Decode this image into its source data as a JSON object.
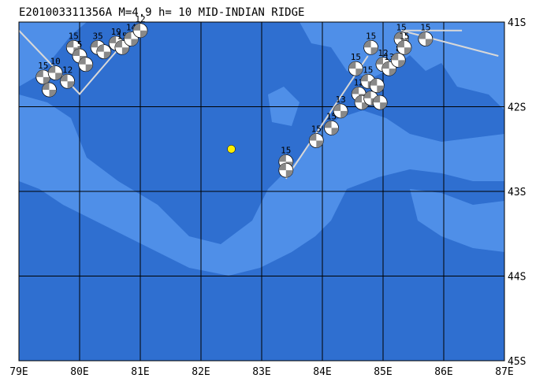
{
  "title": "E201003311356A M=4.9 h= 10 MID-INDIAN RIDGE",
  "map": {
    "lon_range": [
      79,
      87
    ],
    "lat_range": [
      -45,
      -41
    ],
    "lon_ticks": [
      "79E",
      "80E",
      "81E",
      "82E",
      "83E",
      "84E",
      "85E",
      "86E",
      "87E"
    ],
    "lat_ticks": [
      "41S",
      "42S",
      "43S",
      "44S",
      "45S"
    ],
    "colors": {
      "ocean_deep": "#2f6fd0",
      "ocean_shallow": "#4f8fe8",
      "grid": "#000000",
      "ridge": "#d8d8d8",
      "epicenter": "#ffee00"
    }
  },
  "epicenter": {
    "lon": 82.5,
    "lat": -42.5
  },
  "ridge_segments": [
    [
      [
        79.0,
        -41.1
      ],
      [
        80.0,
        -41.85
      ],
      [
        80.9,
        -41.1
      ]
    ],
    [
      [
        83.4,
        -42.85
      ],
      [
        84.75,
        -41.4
      ]
    ],
    [
      [
        85.35,
        -41.1
      ],
      [
        86.3,
        -41.1
      ]
    ],
    [
      [
        85.3,
        -41.1
      ],
      [
        86.9,
        -41.4
      ]
    ]
  ],
  "events": [
    {
      "lon": 79.4,
      "lat": -41.65,
      "mag_label": "15"
    },
    {
      "lon": 79.5,
      "lat": -41.8,
      "mag_label": ""
    },
    {
      "lon": 79.6,
      "lat": -41.6,
      "mag_label": "10"
    },
    {
      "lon": 79.8,
      "lat": -41.7,
      "mag_label": "12"
    },
    {
      "lon": 79.9,
      "lat": -41.3,
      "mag_label": "15"
    },
    {
      "lon": 80.0,
      "lat": -41.4,
      "mag_label": "5"
    },
    {
      "lon": 80.1,
      "lat": -41.5,
      "mag_label": ""
    },
    {
      "lon": 80.3,
      "lat": -41.3,
      "mag_label": "35"
    },
    {
      "lon": 80.4,
      "lat": -41.35,
      "mag_label": ""
    },
    {
      "lon": 80.6,
      "lat": -41.25,
      "mag_label": "19"
    },
    {
      "lon": 80.7,
      "lat": -41.3,
      "mag_label": "15"
    },
    {
      "lon": 80.85,
      "lat": -41.2,
      "mag_label": "14"
    },
    {
      "lon": 81.0,
      "lat": -41.1,
      "mag_label": "12"
    },
    {
      "lon": 83.4,
      "lat": -42.65,
      "mag_label": "15"
    },
    {
      "lon": 83.4,
      "lat": -42.75,
      "mag_label": ""
    },
    {
      "lon": 83.9,
      "lat": -42.4,
      "mag_label": "15"
    },
    {
      "lon": 84.15,
      "lat": -42.25,
      "mag_label": "15"
    },
    {
      "lon": 84.3,
      "lat": -42.05,
      "mag_label": "13"
    },
    {
      "lon": 84.55,
      "lat": -41.55,
      "mag_label": "15"
    },
    {
      "lon": 84.6,
      "lat": -41.85,
      "mag_label": "12"
    },
    {
      "lon": 84.65,
      "lat": -41.95,
      "mag_label": ""
    },
    {
      "lon": 84.75,
      "lat": -41.7,
      "mag_label": "15"
    },
    {
      "lon": 84.8,
      "lat": -41.3,
      "mag_label": "15"
    },
    {
      "lon": 84.8,
      "lat": -41.9,
      "mag_label": ""
    },
    {
      "lon": 84.9,
      "lat": -41.75,
      "mag_label": ""
    },
    {
      "lon": 84.95,
      "lat": -41.95,
      "mag_label": ""
    },
    {
      "lon": 85.0,
      "lat": -41.5,
      "mag_label": "12"
    },
    {
      "lon": 85.1,
      "lat": -41.55,
      "mag_label": "13"
    },
    {
      "lon": 85.25,
      "lat": -41.45,
      "mag_label": "8"
    },
    {
      "lon": 85.3,
      "lat": -41.2,
      "mag_label": "15"
    },
    {
      "lon": 85.35,
      "lat": -41.3,
      "mag_label": "15"
    },
    {
      "lon": 85.7,
      "lat": -41.2,
      "mag_label": "15"
    }
  ]
}
